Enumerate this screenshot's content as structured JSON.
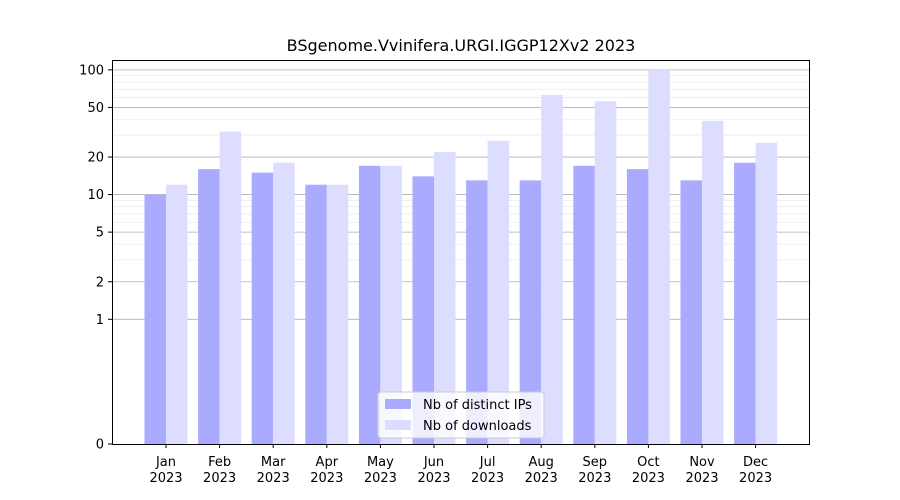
{
  "chart_data": {
    "type": "bar",
    "title": "BSgenome.Vvinifera.URGI.IGGP12Xv2 2023",
    "xlabel": "",
    "ylabel": "",
    "scale": "symlog",
    "categories": [
      [
        "Jan",
        "2023"
      ],
      [
        "Feb",
        "2023"
      ],
      [
        "Mar",
        "2023"
      ],
      [
        "Apr",
        "2023"
      ],
      [
        "May",
        "2023"
      ],
      [
        "Jun",
        "2023"
      ],
      [
        "Jul",
        "2023"
      ],
      [
        "Aug",
        "2023"
      ],
      [
        "Sep",
        "2023"
      ],
      [
        "Oct",
        "2023"
      ],
      [
        "Nov",
        "2023"
      ],
      [
        "Dec",
        "2023"
      ]
    ],
    "series": [
      {
        "name": "Nb of distinct IPs",
        "color": "#aaaaff",
        "values": [
          10,
          16,
          15,
          12,
          17,
          14,
          13,
          13,
          17,
          16,
          13,
          18
        ]
      },
      {
        "name": "Nb of downloads",
        "color": "#ddddff",
        "values": [
          12,
          32,
          18,
          12,
          17,
          22,
          27,
          63,
          56,
          100,
          39,
          26
        ]
      }
    ],
    "yticks": [
      0,
      1,
      2,
      5,
      10,
      20,
      50,
      100
    ],
    "ylim": [
      0,
      120
    ],
    "grid": true,
    "legend_position": "bottom-center"
  }
}
